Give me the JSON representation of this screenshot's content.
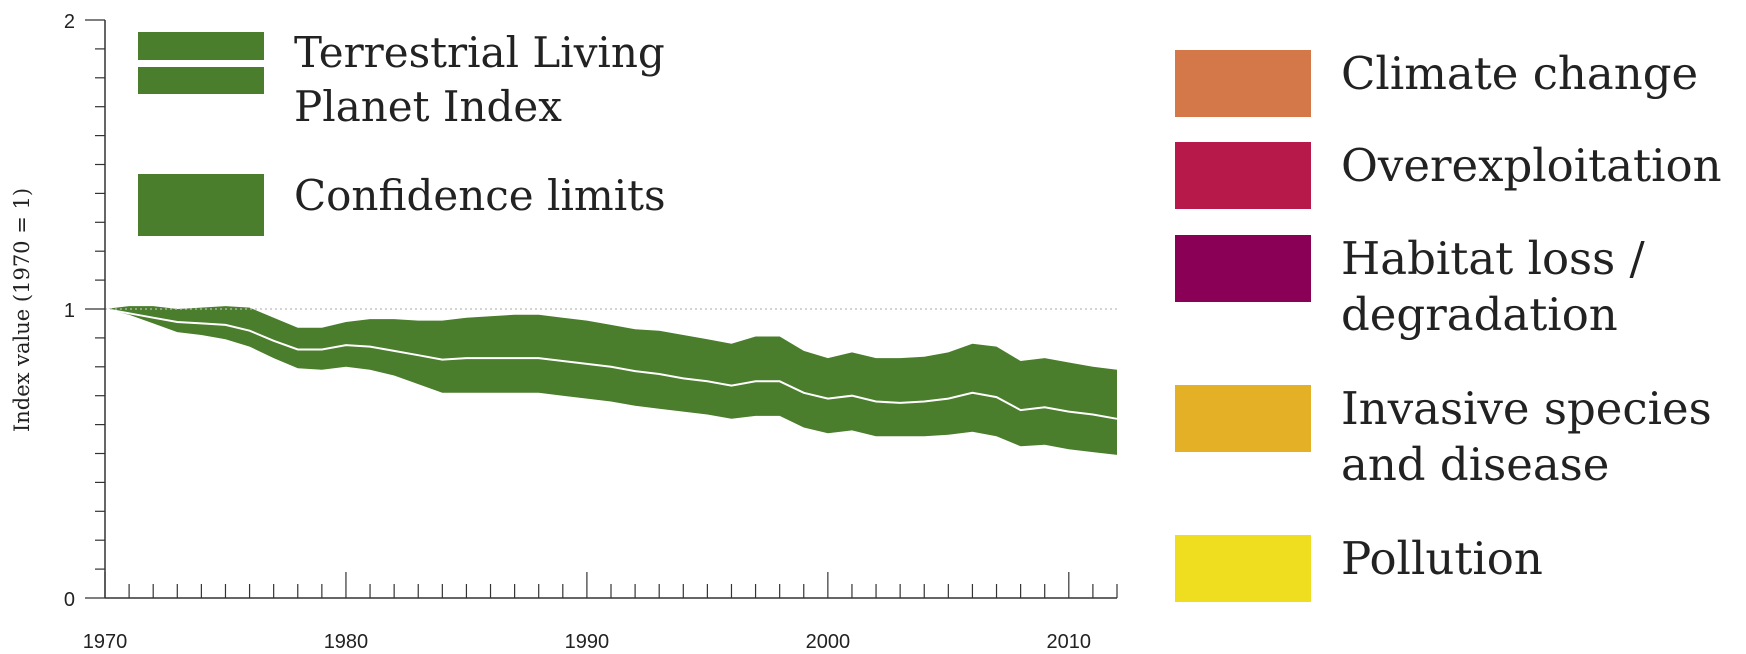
{
  "chart_data": {
    "type": "area",
    "xlabel": "",
    "ylabel": "Index value (1970 = 1)",
    "xlim": [
      1970,
      2012
    ],
    "ylim": [
      0,
      2
    ],
    "x_ticks": [
      1970,
      1980,
      1990,
      2000,
      2010
    ],
    "y_ticks": [
      0,
      1,
      2
    ],
    "reference_line": 1,
    "colors": {
      "band": "#4a7d2c",
      "index_line": "#ffffff",
      "axis": "#333333",
      "reference": "#bbbbbb"
    },
    "series": [
      {
        "name": "Terrestrial Living Planet Index",
        "x": [
          1970,
          1971,
          1972,
          1973,
          1974,
          1975,
          1976,
          1977,
          1978,
          1979,
          1980,
          1981,
          1982,
          1983,
          1984,
          1985,
          1986,
          1987,
          1988,
          1989,
          1990,
          1991,
          1992,
          1993,
          1994,
          1995,
          1996,
          1997,
          1998,
          1999,
          2000,
          2001,
          2002,
          2003,
          2004,
          2005,
          2006,
          2007,
          2008,
          2009,
          2010,
          2011,
          2012
        ],
        "values": [
          1.0,
          0.985,
          0.97,
          0.955,
          0.95,
          0.945,
          0.925,
          0.89,
          0.86,
          0.86,
          0.875,
          0.87,
          0.855,
          0.84,
          0.825,
          0.83,
          0.83,
          0.83,
          0.83,
          0.82,
          0.81,
          0.8,
          0.785,
          0.775,
          0.76,
          0.75,
          0.735,
          0.75,
          0.75,
          0.71,
          0.69,
          0.7,
          0.68,
          0.675,
          0.68,
          0.69,
          0.71,
          0.695,
          0.65,
          0.66,
          0.645,
          0.635,
          0.62
        ]
      },
      {
        "name": "Confidence limits",
        "x": [
          1970,
          1971,
          1972,
          1973,
          1974,
          1975,
          1976,
          1977,
          1978,
          1979,
          1980,
          1981,
          1982,
          1983,
          1984,
          1985,
          1986,
          1987,
          1988,
          1989,
          1990,
          1991,
          1992,
          1993,
          1994,
          1995,
          1996,
          1997,
          1998,
          1999,
          2000,
          2001,
          2002,
          2003,
          2004,
          2005,
          2006,
          2007,
          2008,
          2009,
          2010,
          2011,
          2012
        ],
        "upper": [
          1.0,
          1.01,
          1.01,
          1.0,
          1.005,
          1.01,
          1.005,
          0.97,
          0.935,
          0.935,
          0.955,
          0.965,
          0.965,
          0.96,
          0.96,
          0.97,
          0.975,
          0.98,
          0.98,
          0.97,
          0.96,
          0.945,
          0.93,
          0.925,
          0.91,
          0.895,
          0.88,
          0.905,
          0.905,
          0.855,
          0.83,
          0.85,
          0.83,
          0.83,
          0.835,
          0.85,
          0.88,
          0.87,
          0.82,
          0.83,
          0.815,
          0.8,
          0.79
        ],
        "lower": [
          1.0,
          0.98,
          0.95,
          0.92,
          0.91,
          0.895,
          0.87,
          0.83,
          0.795,
          0.79,
          0.8,
          0.79,
          0.77,
          0.74,
          0.71,
          0.71,
          0.71,
          0.71,
          0.71,
          0.7,
          0.69,
          0.68,
          0.665,
          0.655,
          0.645,
          0.635,
          0.62,
          0.63,
          0.63,
          0.59,
          0.57,
          0.58,
          0.56,
          0.56,
          0.56,
          0.565,
          0.575,
          0.56,
          0.525,
          0.53,
          0.515,
          0.505,
          0.495
        ]
      }
    ],
    "legend_left": [
      {
        "label_line1": "Terrestrial Living",
        "label_line2": "Planet Index"
      },
      {
        "label_line1": "Confidence limits",
        "label_line2": ""
      }
    ],
    "legend_right": [
      {
        "label_line1": "Climate change",
        "label_line2": "",
        "color": "#d4784a"
      },
      {
        "label_line1": "Overexploitation",
        "label_line2": "",
        "color": "#b8194b"
      },
      {
        "label_line1": "Habitat loss /",
        "label_line2": "degradation",
        "color": "#8b0057"
      },
      {
        "label_line1": "Invasive species",
        "label_line2": "and disease",
        "color": "#e3b026"
      },
      {
        "label_line1": "Pollution",
        "label_line2": "",
        "color": "#efdd1f"
      }
    ]
  }
}
